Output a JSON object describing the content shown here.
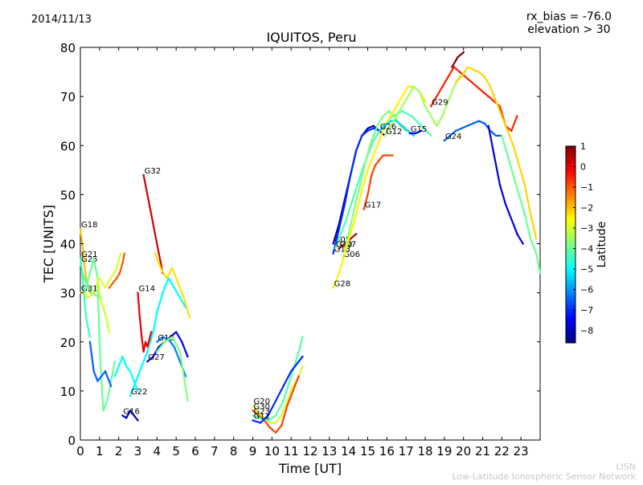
{
  "header": {
    "date": "2014/11/13",
    "title": "IQUITOS, Peru",
    "info_line1": "rx_bias = -76.0",
    "info_line2": "elevation > 30"
  },
  "footer": {
    "credit1": "LISN",
    "credit2": "Low-Latitude Ionospheric Sensor Network"
  },
  "chart_data": {
    "type": "scatter",
    "title": "IQUITOS, Peru",
    "xlabel": "Time [UT]",
    "ylabel": "TEC [UNITS]",
    "xlim": [
      0,
      24
    ],
    "ylim": [
      0,
      80
    ],
    "xticks": [
      0,
      1,
      2,
      3,
      4,
      5,
      6,
      7,
      8,
      9,
      10,
      11,
      12,
      13,
      14,
      15,
      16,
      17,
      18,
      19,
      20,
      21,
      22,
      23
    ],
    "yticks": [
      0,
      10,
      20,
      30,
      40,
      50,
      60,
      70,
      80
    ],
    "grid": false,
    "colorbar": {
      "label": "Latitude",
      "min": -8.6,
      "max": 1,
      "ticks": [
        1,
        0,
        -1,
        -2,
        -3,
        -4,
        -5,
        -6,
        -7,
        -8
      ]
    },
    "series": [
      {
        "name": "G18",
        "lat": -2.0,
        "x": [
          0.0,
          0.1,
          0.2,
          0.3,
          0.4,
          0.5
        ],
        "y": [
          43,
          40,
          36,
          33,
          31,
          30
        ]
      },
      {
        "name": "G25",
        "lat": -4.0,
        "x": [
          0.0,
          0.2,
          0.4,
          0.6,
          0.8,
          1.0
        ],
        "y": [
          36,
          33,
          31,
          30,
          29.5,
          29
        ]
      },
      {
        "name": "G21",
        "lat": -4.5,
        "x": [
          0.0,
          0.1,
          0.2,
          0.3,
          0.4,
          0.5
        ],
        "y": [
          37,
          34,
          29,
          25,
          23,
          21
        ]
      },
      {
        "name": "G31",
        "lat": -3.0,
        "x": [
          0.0,
          0.2,
          0.4,
          0.7,
          1.0,
          1.3,
          1.6,
          1.9,
          2.1
        ],
        "y": [
          30,
          30,
          29,
          30,
          33,
          31,
          33,
          35,
          38
        ]
      },
      {
        "name": "",
        "lat": -4.0,
        "x": [
          0.3,
          0.5,
          0.7,
          0.9,
          1.0,
          1.1,
          1.2,
          1.4,
          1.6,
          1.8
        ],
        "y": [
          31,
          34,
          37,
          33,
          20,
          12,
          6,
          8,
          12,
          16
        ]
      },
      {
        "name": "",
        "lat": -3.0,
        "x": [
          0.9,
          1.0,
          1.1,
          1.2,
          1.35,
          1.5
        ],
        "y": [
          33,
          30,
          28,
          27,
          25,
          22
        ]
      },
      {
        "name": "",
        "lat": -6.5,
        "x": [
          0.5,
          0.7,
          0.9,
          1.1,
          1.3,
          1.5,
          1.6
        ],
        "y": [
          20,
          14,
          12,
          13,
          14,
          12,
          11
        ]
      },
      {
        "name": "",
        "lat": -1.0,
        "x": [
          1.5,
          1.7,
          1.9,
          2.05,
          2.2,
          2.3
        ],
        "y": [
          31,
          32,
          33,
          34,
          36,
          38
        ]
      },
      {
        "name": "",
        "lat": -5.0,
        "x": [
          1.8,
          2.0,
          2.2,
          2.4,
          2.6,
          2.8,
          3.0
        ],
        "y": [
          13,
          15,
          17,
          15,
          14,
          12,
          10
        ]
      },
      {
        "name": "G16",
        "lat": -8.0,
        "x": [
          2.2,
          2.4,
          2.6,
          2.8,
          3.0
        ],
        "y": [
          5,
          4.5,
          6,
          5,
          4
        ]
      },
      {
        "name": "G22",
        "lat": -5.0,
        "x": [
          2.6,
          2.8,
          3.0,
          3.2,
          3.5,
          3.8,
          4.0,
          4.3,
          4.6,
          4.9,
          5.2,
          5.5
        ],
        "y": [
          9,
          11,
          13,
          15,
          18,
          22,
          26,
          30,
          33,
          31,
          29,
          27
        ]
      },
      {
        "name": "G14",
        "lat": 0.0,
        "x": [
          3.0,
          3.1,
          3.2,
          3.3,
          3.4,
          3.5,
          3.7
        ],
        "y": [
          30,
          25,
          21,
          18,
          20,
          19,
          22
        ]
      },
      {
        "name": "G32",
        "lat": 0.2,
        "x": [
          3.3,
          3.5,
          3.7,
          3.9,
          4.1,
          4.3
        ],
        "y": [
          54,
          50,
          46,
          42,
          38,
          34
        ]
      },
      {
        "name": "",
        "lat": -2.3,
        "x": [
          3.9,
          4.2,
          4.5,
          4.8,
          5.1,
          5.4,
          5.7
        ],
        "y": [
          38,
          35,
          33,
          35,
          32,
          29,
          25
        ]
      },
      {
        "name": "G27",
        "lat": -7.5,
        "x": [
          3.5,
          3.8,
          4.1,
          4.4,
          4.7,
          5.0,
          5.3,
          5.6
        ],
        "y": [
          16,
          17,
          19,
          20,
          21,
          22,
          20,
          17
        ]
      },
      {
        "name": "G19",
        "lat": -6.2,
        "x": [
          4.0,
          4.3,
          4.6,
          4.9,
          5.2,
          5.5
        ],
        "y": [
          20,
          21,
          20.5,
          19,
          16,
          13
        ]
      },
      {
        "name": "",
        "lat": -3.8,
        "x": [
          4.0,
          4.4,
          4.8,
          5.2,
          5.6
        ],
        "y": [
          18,
          20,
          21,
          18,
          8
        ]
      },
      {
        "name": "G20",
        "lat": -3.0,
        "x": [
          9.0,
          9.3,
          9.6,
          9.9,
          10.2,
          10.5,
          10.8,
          11.1,
          11.4,
          11.6
        ],
        "y": [
          7,
          5.5,
          4.5,
          3.5,
          3.5,
          5,
          8,
          11,
          13,
          15
        ]
      },
      {
        "name": "G30",
        "lat": -0.8,
        "x": [
          9.0,
          9.3,
          9.6,
          9.9,
          10.2,
          10.5,
          10.8,
          11.1,
          11.4
        ],
        "y": [
          6,
          5,
          4,
          2.5,
          1.5,
          3,
          7,
          10,
          13
        ]
      },
      {
        "name": "G23",
        "lat": -4.2,
        "x": [
          9.0,
          9.4,
          9.8,
          10.2,
          10.6,
          11.0,
          11.4,
          11.6
        ],
        "y": [
          5,
          4.5,
          4,
          5,
          8,
          13,
          18,
          21
        ]
      },
      {
        "name": "G11",
        "lat": -7.0,
        "x": [
          9.0,
          9.4,
          9.8,
          10.2,
          10.6,
          11.0,
          11.4,
          11.6
        ],
        "y": [
          4,
          3.5,
          5,
          8,
          11,
          14,
          16,
          17
        ]
      },
      {
        "name": "G05",
        "lat": -8.3,
        "x": [
          13.2,
          13.5,
          13.8,
          14.1,
          14.4,
          14.7,
          15.0,
          15.3,
          15.6,
          15.9
        ],
        "y": [
          40,
          44,
          49,
          54,
          59,
          62,
          63.5,
          64,
          63,
          62
        ]
      },
      {
        "name": "G13",
        "lat": -7.0,
        "x": [
          13.2,
          13.5,
          13.8,
          14.1,
          14.4,
          14.7,
          15.0,
          15.3,
          15.6
        ],
        "y": [
          38,
          43,
          48,
          54,
          59,
          62,
          63,
          63.5,
          63
        ]
      },
      {
        "name": "G10",
        "lat": -4.3,
        "x": [
          13.3,
          13.8,
          14.3,
          14.8,
          15.3,
          15.8,
          16.3,
          16.8,
          17.3,
          17.8,
          18.3
        ],
        "y": [
          39,
          44,
          50,
          56,
          61,
          64,
          66,
          67,
          66,
          64,
          62
        ]
      },
      {
        "name": "G07",
        "lat": 0.5,
        "x": [
          13.5,
          13.8,
          14.1,
          14.4
        ],
        "y": [
          39,
          40,
          41,
          42
        ]
      },
      {
        "name": "G06",
        "lat": -3.8,
        "x": [
          13.7,
          14.0,
          14.3,
          14.6,
          14.9,
          15.2,
          15.5,
          15.8,
          16.1,
          16.4,
          16.7,
          17.0
        ],
        "y": [
          37,
          42,
          47,
          52,
          57,
          61,
          64,
          66,
          67,
          66,
          64,
          63
        ]
      },
      {
        "name": "G28",
        "lat": -2.5,
        "x": [
          13.2,
          13.5,
          13.8,
          14.1,
          14.4,
          14.7,
          15.0,
          15.3,
          15.6,
          15.9,
          16.2,
          16.5,
          16.8,
          17.1,
          17.4,
          17.7,
          18.0
        ],
        "y": [
          31,
          34,
          38,
          42,
          46,
          51,
          55,
          58,
          61,
          64,
          66,
          68,
          70,
          72,
          72,
          71,
          69
        ]
      },
      {
        "name": "G17",
        "lat": -0.8,
        "x": [
          14.8,
          15.0,
          15.2,
          15.4,
          15.6,
          15.8,
          16.0,
          16.3
        ],
        "y": [
          47,
          50,
          54,
          56,
          57,
          58,
          58,
          58
        ]
      },
      {
        "name": "G26",
        "lat": -5.5,
        "x": [
          15.6,
          15.9,
          16.2,
          16.5,
          16.8,
          17.1,
          17.4
        ],
        "y": [
          63,
          64,
          65,
          65,
          64,
          63,
          62
        ]
      },
      {
        "name": "G12",
        "lat": -3.5,
        "x": [
          15.9,
          16.2,
          16.5,
          16.8,
          17.1,
          17.4,
          17.7,
          18.0,
          18.3,
          18.6,
          18.9,
          19.2,
          19.5,
          19.8,
          20.1
        ],
        "y": [
          62,
          64,
          66,
          68,
          70,
          72,
          71,
          68,
          66,
          64,
          66,
          69,
          72,
          74,
          75
        ]
      },
      {
        "name": "G15",
        "lat": -7.5,
        "x": [
          17.2,
          17.5,
          17.8
        ],
        "y": [
          62.5,
          62.5,
          63
        ]
      },
      {
        "name": "G24",
        "lat": -6.5,
        "x": [
          19.0,
          19.3,
          19.6,
          19.9,
          20.2,
          20.5,
          20.8,
          21.1,
          21.4,
          21.7,
          22.0
        ],
        "y": [
          61,
          62,
          63,
          63.5,
          64,
          64.5,
          65,
          64.5,
          63,
          62,
          62
        ]
      },
      {
        "name": "G29",
        "lat": -0.5,
        "x": [
          18.3,
          18.6,
          18.9,
          19.2,
          19.5,
          19.8,
          20.1,
          20.4,
          20.7,
          21.0,
          21.3,
          21.6,
          21.9,
          22.2,
          22.5,
          22.8
        ],
        "y": [
          68,
          70,
          72,
          74,
          76,
          75,
          74,
          73,
          72,
          71,
          70,
          69,
          68,
          64,
          63,
          66
        ]
      },
      {
        "name": "",
        "lat": 1.0,
        "x": [
          19.4,
          19.7,
          20.0
        ],
        "y": [
          76,
          78,
          79
        ]
      },
      {
        "name": "",
        "lat": -2.2,
        "x": [
          19.6,
          19.9,
          20.2,
          20.5,
          20.8,
          21.1,
          21.4,
          21.7,
          22.0,
          22.3,
          22.6,
          22.9,
          23.2,
          23.5,
          23.8
        ],
        "y": [
          73,
          74,
          76,
          75.5,
          75,
          74,
          72,
          69,
          66,
          63,
          60,
          56,
          52,
          46,
          41
        ]
      },
      {
        "name": "",
        "lat": -7.7,
        "x": [
          21.3,
          21.6,
          21.9,
          22.2,
          22.5,
          22.8,
          23.1
        ],
        "y": [
          64,
          58,
          52,
          48,
          45,
          42,
          40
        ]
      },
      {
        "name": "",
        "lat": -4.0,
        "x": [
          22.0,
          22.3,
          22.6,
          22.9,
          23.2,
          23.5,
          23.8,
          24.0
        ],
        "y": [
          62,
          58,
          54,
          50,
          46,
          41,
          38,
          34
        ]
      }
    ]
  }
}
